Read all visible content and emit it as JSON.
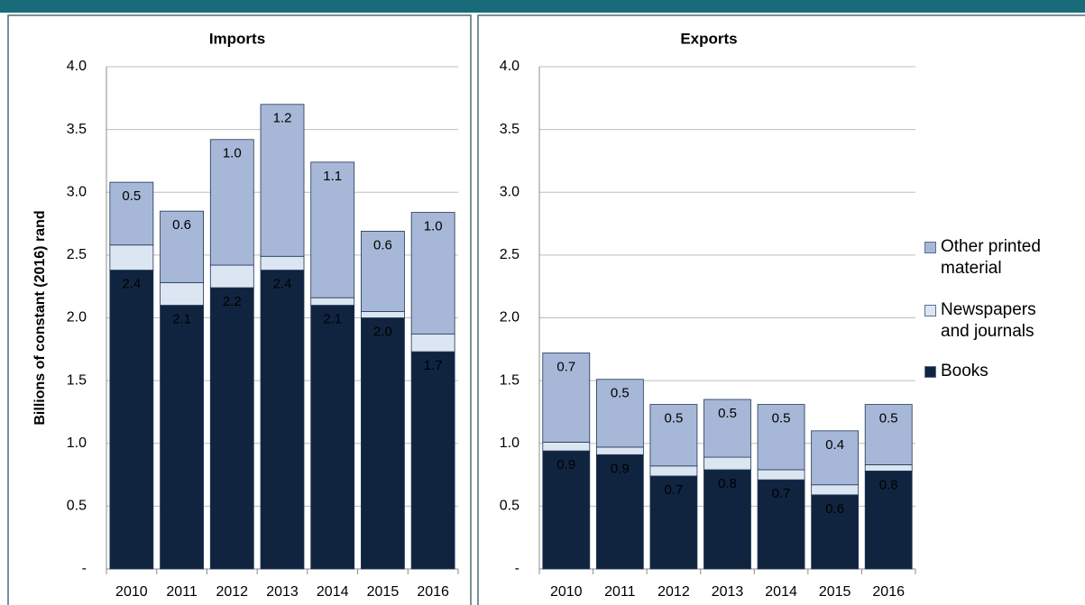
{
  "chart_data": [
    {
      "type": "stacked-bar",
      "title": "Imports",
      "y_label": "Billions of constant (2016) rand",
      "categories": [
        "2010",
        "2011",
        "2012",
        "2013",
        "2014",
        "2015",
        "2016"
      ],
      "ylim": [
        0,
        4
      ],
      "yticks": [
        {
          "value": 0,
          "label": "-"
        },
        {
          "value": 0.5,
          "label": "0.5"
        },
        {
          "value": 1,
          "label": "1.0"
        },
        {
          "value": 1.5,
          "label": "1.5"
        },
        {
          "value": 2,
          "label": "2.0"
        },
        {
          "value": 2.5,
          "label": "2.5"
        },
        {
          "value": 3,
          "label": "3.0"
        },
        {
          "value": 3.5,
          "label": "3.5"
        },
        {
          "value": 4,
          "label": "4.0"
        }
      ],
      "grid": true,
      "series": [
        {
          "name": "Books",
          "color": "#10243f",
          "values": [
            2.38,
            2.1,
            2.24,
            2.38,
            2.1,
            2.0,
            1.73
          ],
          "value_labels": [
            "2.4",
            "2.1",
            "2.2",
            "2.4",
            "2.1",
            "2.0",
            "1.7"
          ]
        },
        {
          "name": "Newspapers and journals",
          "color": "#dce6f2",
          "values": [
            0.2,
            0.18,
            0.18,
            0.11,
            0.06,
            0.05,
            0.14
          ]
        },
        {
          "name": "Other printed material",
          "color": "#a7b7d7",
          "values": [
            0.5,
            0.57,
            1.0,
            1.21,
            1.08,
            0.64,
            0.97
          ],
          "value_labels": [
            "0.5",
            "0.6",
            "1.0",
            "1.2",
            "1.1",
            "0.6",
            "1.0"
          ]
        }
      ]
    },
    {
      "type": "stacked-bar",
      "title": "Exports",
      "categories": [
        "2010",
        "2011",
        "2012",
        "2013",
        "2014",
        "2015",
        "2016"
      ],
      "ylim": [
        0,
        4
      ],
      "yticks": [
        {
          "value": 0,
          "label": "-"
        },
        {
          "value": 0.5,
          "label": "0.5"
        },
        {
          "value": 1,
          "label": "1.0"
        },
        {
          "value": 1.5,
          "label": "1.5"
        },
        {
          "value": 2,
          "label": "2.0"
        },
        {
          "value": 2.5,
          "label": "2.5"
        },
        {
          "value": 3,
          "label": "3.0"
        },
        {
          "value": 3.5,
          "label": "3.5"
        },
        {
          "value": 4,
          "label": "4.0"
        }
      ],
      "grid": true,
      "legend": "right",
      "series": [
        {
          "name": "Books",
          "color": "#10243f",
          "values": [
            0.94,
            0.91,
            0.74,
            0.79,
            0.71,
            0.59,
            0.78
          ],
          "value_labels": [
            "0.9",
            "0.9",
            "0.7",
            "0.8",
            "0.7",
            "0.6",
            "0.8"
          ]
        },
        {
          "name": "Newspapers and journals",
          "color": "#dce6f2",
          "values": [
            0.07,
            0.06,
            0.08,
            0.1,
            0.08,
            0.08,
            0.05
          ]
        },
        {
          "name": "Other printed material",
          "color": "#a7b7d7",
          "values": [
            0.71,
            0.54,
            0.49,
            0.46,
            0.52,
            0.43,
            0.48
          ],
          "value_labels": [
            "0.7",
            "0.5",
            "0.5",
            "0.5",
            "0.5",
            "0.4",
            "0.5"
          ]
        }
      ]
    }
  ]
}
